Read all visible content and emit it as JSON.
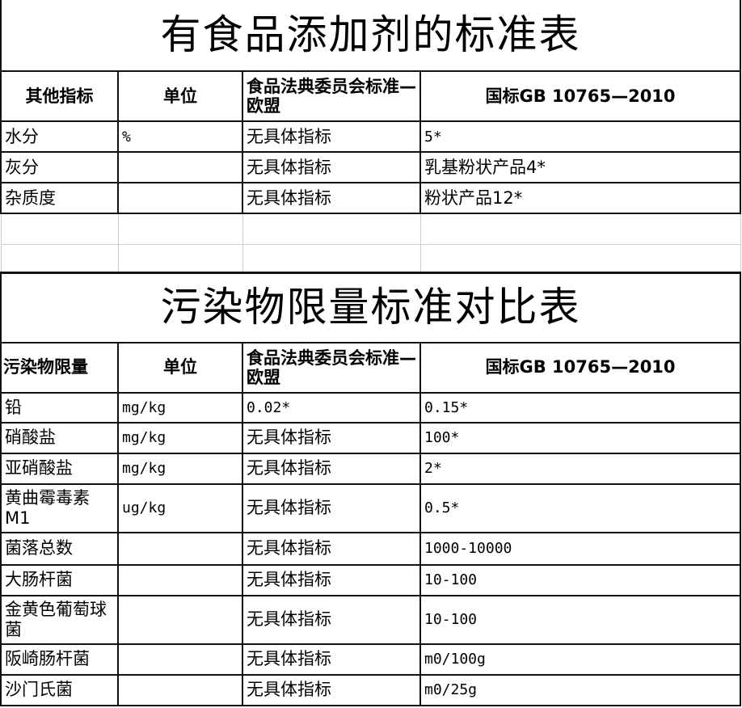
{
  "table1": {
    "title": "有食品添加剂的标准表",
    "headers": [
      "其他指标",
      "单位",
      "食品法典委员会标准—欧盟",
      "国标GB 10765—2010"
    ],
    "rows": [
      [
        "水分",
        "%",
        "无具体指标",
        "5*"
      ],
      [
        "灰分",
        "",
        "无具体指标",
        "乳基粉状产品4*"
      ],
      [
        "杂质度",
        "",
        "无具体指标",
        "粉状产品12*"
      ]
    ]
  },
  "table2": {
    "title": "污染物限量标准对比表",
    "headers": [
      "污染物限量",
      "单位",
      "食品法典委员会标准—欧盟",
      "国标GB 10765—2010"
    ],
    "rows": [
      [
        "铅",
        "mg/kg",
        "0.02*",
        "0.15*"
      ],
      [
        "硝酸盐",
        "mg/kg",
        "无具体指标",
        "100*"
      ],
      [
        "亚硝酸盐",
        "mg/kg",
        "无具体指标",
        "2*"
      ],
      [
        "黄曲霉毒素M1",
        "ug/kg",
        "无具体指标",
        "0.5*"
      ],
      [
        "菌落总数",
        "",
        "无具体指标",
        "1000-10000"
      ],
      [
        "大肠杆菌",
        "",
        "无具体指标",
        "10-100"
      ],
      [
        "金黄色葡萄球菌",
        "",
        "无具体指标",
        "10-100"
      ],
      [
        "阪崎肠杆菌",
        "",
        "无具体指标",
        "m0/100g"
      ],
      [
        "沙门氏菌",
        "",
        "无具体指标",
        "m0/25g"
      ]
    ]
  }
}
